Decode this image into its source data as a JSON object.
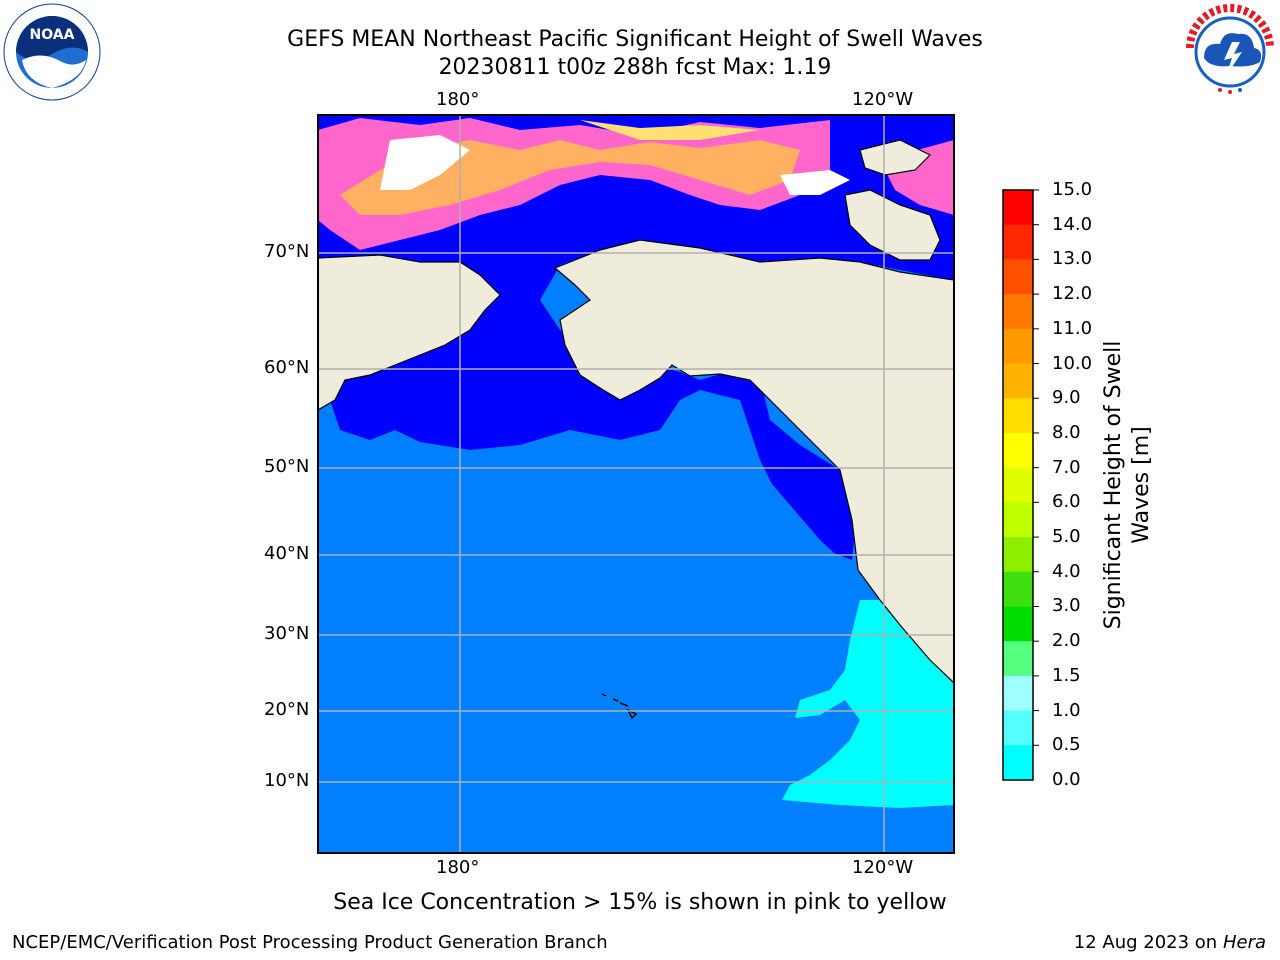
{
  "header": {
    "title_line1": "GEFS MEAN Northeast Pacific Significant Height of Swell Waves",
    "title_line2": "20230811 t00z 288h fcst   Max: 1.19"
  },
  "logos": {
    "left": "NOAA",
    "left_ring_text": "NATIONAL OCEANIC AND ATMOSPHERIC ADMINISTRATION · U.S. DEPARTMENT OF COMMERCE",
    "right_ring_text": "NATIONAL WEATHER SERVICE"
  },
  "map": {
    "lon_labels_top": [
      "180°",
      "120°W"
    ],
    "lon_labels_bottom": [
      "180°",
      "120°W"
    ],
    "lat_labels": [
      "70°N",
      "60°N",
      "50°N",
      "40°N",
      "30°N",
      "20°N",
      "10°N"
    ],
    "colors": {
      "land": "#efecdc",
      "ocean_0_5_1_0": "#0080ff",
      "ocean_0_0_0_5": "#0000ff",
      "swell_1_0_1_5": "#00ffff",
      "ice_pink": "#ff66cc",
      "ice_orange": "#ffb060",
      "ice_yellow": "#ffe070"
    }
  },
  "colorbar": {
    "tick_labels": [
      "15.0",
      "14.0",
      "13.0",
      "12.0",
      "11.0",
      "10.0",
      "9.0",
      "8.0",
      "7.0",
      "6.0",
      "5.0",
      "4.0",
      "3.0",
      "2.0",
      "1.5",
      "1.0",
      "0.5",
      "0.0"
    ],
    "segment_colors": [
      "#ff0000",
      "#ff2800",
      "#ff5000",
      "#ff7800",
      "#ff9900",
      "#ffb300",
      "#ffdd00",
      "#ffff00",
      "#dfff00",
      "#bfff00",
      "#8cf000",
      "#40e010",
      "#00dd00",
      "#55ff80",
      "#a0ffff",
      "#55ffff",
      "#00ffff",
      "#0080ff",
      "#0000ff"
    ],
    "label_line1": "Significant Height of Swell",
    "label_line2": "Waves [m]"
  },
  "footer": {
    "note": "Sea Ice Concentration > 15% is shown in pink to yellow",
    "left": "NCEP/EMC/Verification Post Processing Product Generation Branch",
    "right_date": "12 Aug 2023 on",
    "right_host": "Hera"
  }
}
